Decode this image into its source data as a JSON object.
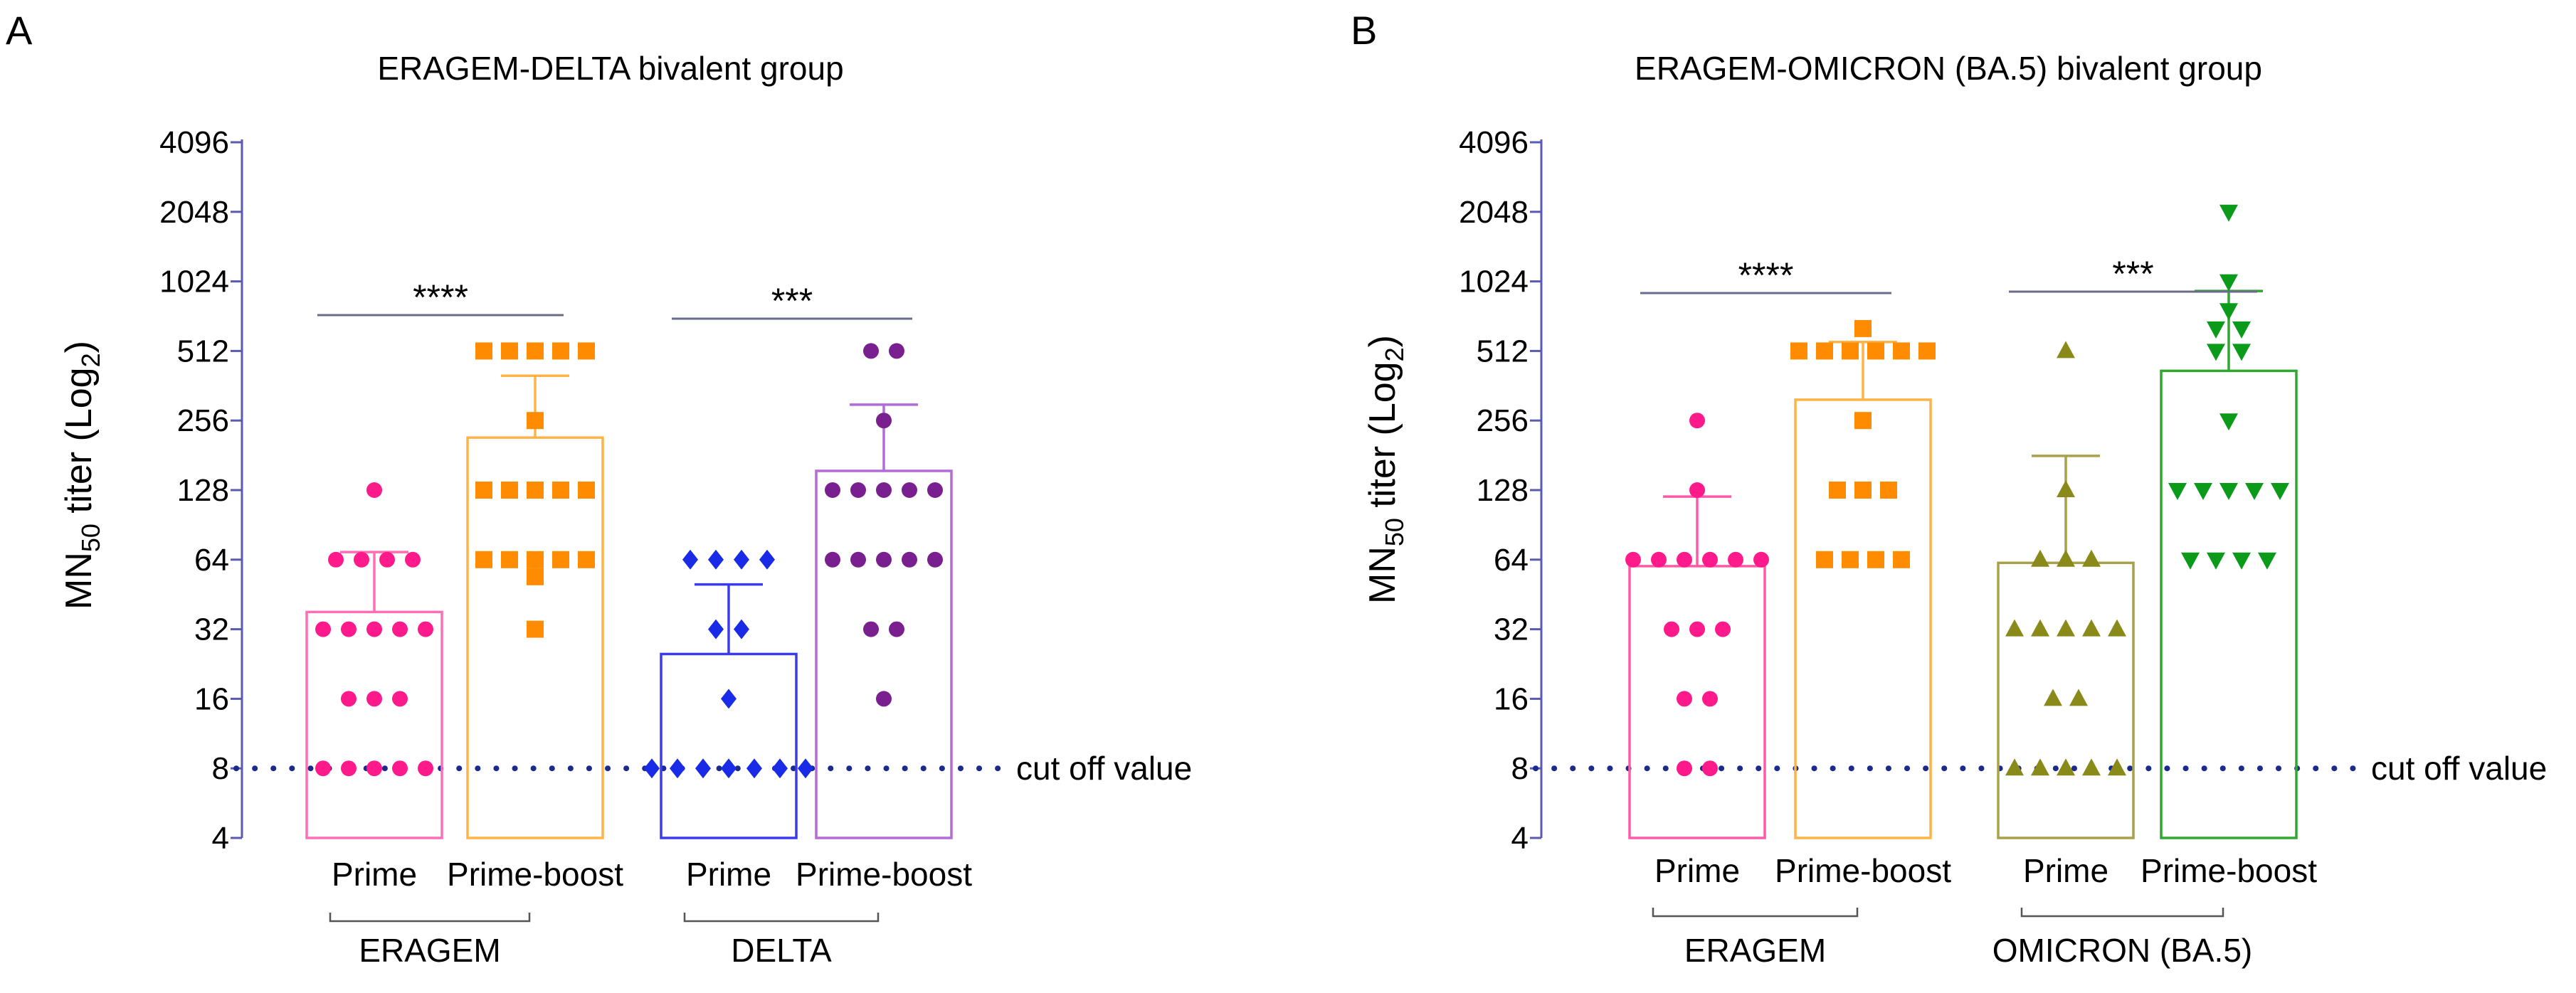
{
  "chart_data": [
    {
      "type": "bar",
      "panel": "A",
      "title": "ERAGEM-DELTA bivalent group",
      "ylabel": "MN50 titer (Log2)",
      "ylabel_main": "MN",
      "ylabel_sub": "50",
      "ylabel_rest": " titer (Log",
      "ylabel_sub2": "2",
      "ylabel_end": ")",
      "yscale": "log2",
      "ylim": [
        4,
        4096
      ],
      "yticks": [
        4,
        8,
        16,
        32,
        64,
        128,
        256,
        512,
        1024,
        2048,
        4096
      ],
      "cutoff": {
        "value": 8,
        "label": "cut off value"
      },
      "groups": [
        {
          "label": "ERAGEM",
          "bars": [
            0,
            1
          ]
        },
        {
          "label": "DELTA",
          "bars": [
            2,
            3
          ]
        }
      ],
      "significance": [
        {
          "bars": [
            0,
            1
          ],
          "label": "****"
        },
        {
          "bars": [
            2,
            3
          ],
          "label": "***"
        }
      ],
      "bars": [
        {
          "category": "Prime",
          "mean": 38,
          "sd_upper": 69,
          "color": "#ff6eb4",
          "marker": "circle",
          "marker_color": "#ff1a8c",
          "points": [
            128,
            64,
            64,
            64,
            64,
            32,
            32,
            32,
            32,
            32,
            16,
            16,
            16,
            8,
            8,
            8,
            8,
            8
          ]
        },
        {
          "category": "Prime-boost",
          "mean": 216,
          "sd_upper": 400,
          "color": "#ffb347",
          "marker": "square",
          "marker_color": "#ff8c00",
          "points": [
            512,
            512,
            512,
            512,
            512,
            256,
            128,
            128,
            128,
            128,
            128,
            64,
            64,
            64,
            64,
            64,
            54,
            32
          ]
        },
        {
          "category": "Prime",
          "mean": 25,
          "sd_upper": 50,
          "color": "#3a3af0",
          "marker": "diamond",
          "marker_color": "#1a2be8",
          "points": [
            64,
            64,
            64,
            64,
            32,
            32,
            16,
            8,
            8,
            8,
            8,
            8,
            8,
            8
          ]
        },
        {
          "category": "Prime-boost",
          "mean": 155,
          "sd_upper": 300,
          "color": "#b36bd9",
          "marker": "circle",
          "marker_color": "#7a1f8f",
          "points": [
            512,
            512,
            256,
            128,
            128,
            128,
            128,
            128,
            64,
            64,
            64,
            64,
            64,
            32,
            32,
            16
          ]
        }
      ]
    },
    {
      "type": "bar",
      "panel": "B",
      "title": "ERAGEM-OMICRON (BA.5) bivalent group",
      "ylabel": "MN50 titer (Log2)",
      "ylabel_main": "MN",
      "ylabel_sub": "50",
      "ylabel_rest": " titer (Log",
      "ylabel_sub2": "2",
      "ylabel_end": ")",
      "yscale": "log2",
      "ylim": [
        4,
        4096
      ],
      "yticks": [
        4,
        8,
        16,
        32,
        64,
        128,
        256,
        512,
        1024,
        2048,
        4096
      ],
      "cutoff": {
        "value": 8,
        "label": "cut off value"
      },
      "groups": [
        {
          "label": "ERAGEM",
          "bars": [
            0,
            1
          ]
        },
        {
          "label": "OMICRON (BA.5)",
          "bars": [
            2,
            3
          ]
        }
      ],
      "significance": [
        {
          "bars": [
            0,
            1
          ],
          "label": "****"
        },
        {
          "bars": [
            2,
            3
          ],
          "label": "***"
        }
      ],
      "bars": [
        {
          "category": "Prime",
          "mean": 60,
          "sd_upper": 120,
          "color": "#ff5aa8",
          "marker": "circle",
          "marker_color": "#ff1a8c",
          "points": [
            256,
            128,
            64,
            64,
            64,
            64,
            64,
            64,
            32,
            32,
            32,
            16,
            16,
            8,
            8
          ]
        },
        {
          "category": "Prime-boost",
          "mean": 315,
          "sd_upper": 560,
          "color": "#ffb347",
          "marker": "square",
          "marker_color": "#ff8c00",
          "points": [
            640,
            512,
            512,
            512,
            512,
            512,
            512,
            256,
            128,
            128,
            128,
            64,
            64,
            64,
            64
          ]
        },
        {
          "category": "Prime",
          "mean": 62,
          "sd_upper": 180,
          "color": "#a8a04a",
          "marker": "triangle-up",
          "marker_color": "#8a8a1a",
          "points": [
            512,
            128,
            64,
            64,
            64,
            32,
            32,
            32,
            32,
            32,
            16,
            16,
            8,
            8,
            8,
            8,
            8
          ]
        },
        {
          "category": "Prime-boost",
          "mean": 420,
          "sd_upper": 930,
          "color": "#2ea82e",
          "marker": "triangle-down",
          "marker_color": "#0b9a1a",
          "points": [
            2048,
            1024,
            768,
            640,
            640,
            512,
            512,
            256,
            128,
            128,
            128,
            128,
            128,
            64,
            64,
            64,
            64
          ]
        }
      ]
    }
  ]
}
